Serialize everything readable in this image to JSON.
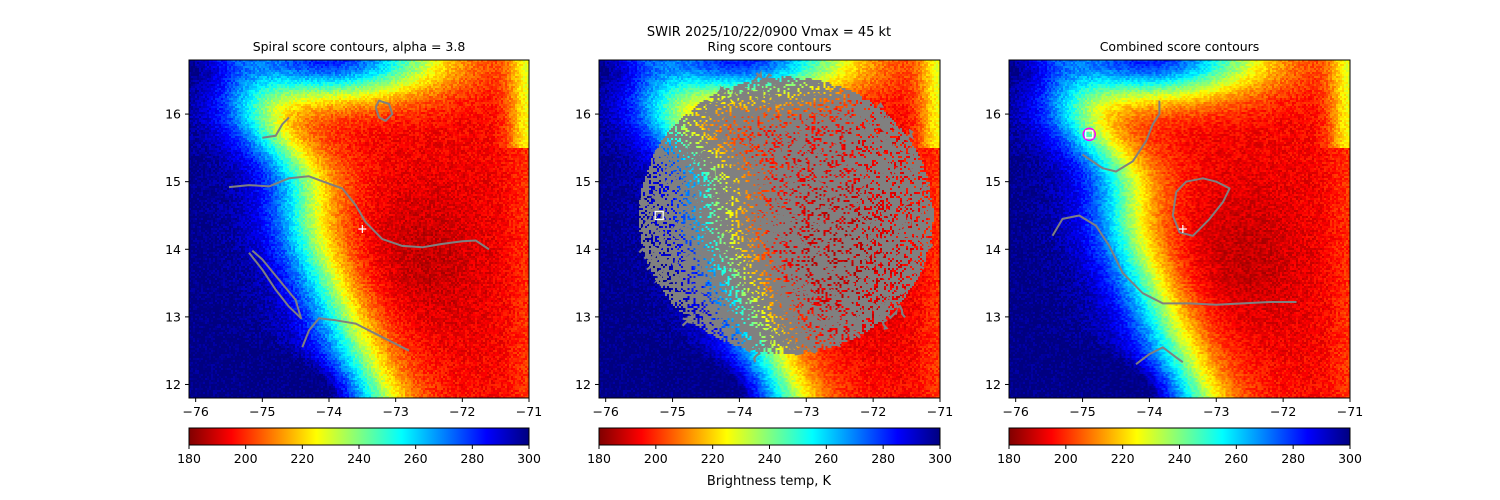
{
  "suptitle": "SWIR  2025/10/22/0900    Vmax = 45 kt",
  "colorbar_label": "Brightness temp, K",
  "colormap": [
    "#800000",
    "#ff0000",
    "#ff8000",
    "#ffff00",
    "#80ff80",
    "#00ffff",
    "#0080ff",
    "#0000ff",
    "#000080"
  ],
  "contour_color": "#808080",
  "chart_data": [
    {
      "type": "heatmap",
      "title": "Spiral score contours, alpha =  3.8",
      "xlim": [
        -76.1,
        -71.0
      ],
      "ylim": [
        11.8,
        16.8
      ],
      "xticks": [
        -76,
        -75,
        -74,
        -73,
        -72,
        -71
      ],
      "yticks": [
        12,
        13,
        14,
        15,
        16
      ],
      "xticklabels": [
        "−76",
        "−75",
        "−74",
        "−73",
        "−72",
        "−71"
      ],
      "yticklabels": [
        "12",
        "13",
        "14",
        "15",
        "16"
      ],
      "colorbar": {
        "range": [
          180,
          300
        ],
        "ticks": [
          "180",
          "200",
          "220",
          "240",
          "260",
          "280",
          "300"
        ]
      },
      "center_marker": {
        "symbol": "plus",
        "lon": -73.5,
        "lat": 14.3,
        "color": "#ffffff"
      },
      "contours": [
        [
          [
            -75.5,
            14.92
          ],
          [
            -75.2,
            14.95
          ],
          [
            -74.9,
            14.93
          ],
          [
            -74.6,
            15.05
          ],
          [
            -74.3,
            15.08
          ],
          [
            -74.0,
            14.97
          ],
          [
            -73.8,
            14.9
          ],
          [
            -73.6,
            14.65
          ],
          [
            -73.45,
            14.4
          ],
          [
            -73.2,
            14.15
          ],
          [
            -72.9,
            14.05
          ],
          [
            -72.6,
            14.03
          ],
          [
            -72.3,
            14.08
          ],
          [
            -72.0,
            14.12
          ],
          [
            -71.8,
            14.13
          ],
          [
            -71.6,
            14.0
          ]
        ],
        [
          [
            -75.2,
            13.95
          ],
          [
            -75.0,
            13.7
          ],
          [
            -74.8,
            13.4
          ],
          [
            -74.6,
            13.15
          ],
          [
            -74.42,
            12.98
          ],
          [
            -74.5,
            13.25
          ],
          [
            -74.75,
            13.55
          ],
          [
            -75.0,
            13.85
          ],
          [
            -75.15,
            13.98
          ]
        ],
        [
          [
            -74.4,
            12.55
          ],
          [
            -74.3,
            12.8
          ],
          [
            -74.15,
            12.98
          ],
          [
            -73.9,
            12.95
          ],
          [
            -73.6,
            12.9
          ],
          [
            -73.3,
            12.75
          ],
          [
            -73.0,
            12.6
          ],
          [
            -72.8,
            12.5
          ]
        ],
        [
          [
            -75.0,
            15.65
          ],
          [
            -74.8,
            15.68
          ],
          [
            -74.7,
            15.85
          ],
          [
            -74.6,
            15.95
          ]
        ],
        [
          [
            -73.3,
            16.1
          ],
          [
            -73.25,
            15.95
          ],
          [
            -73.15,
            15.9
          ],
          [
            -73.05,
            16.0
          ],
          [
            -73.1,
            16.15
          ],
          [
            -73.25,
            16.2
          ],
          [
            -73.3,
            16.1
          ]
        ]
      ]
    },
    {
      "type": "heatmap",
      "title": "Ring score contours",
      "xlim": [
        -76.1,
        -71.0
      ],
      "ylim": [
        11.8,
        16.8
      ],
      "xticks": [
        -76,
        -75,
        -74,
        -73,
        -72,
        -71
      ],
      "yticks": [
        12,
        13,
        14,
        15,
        16
      ],
      "xticklabels": [
        "−76",
        "−75",
        "−74",
        "−73",
        "−72",
        "−71"
      ],
      "yticklabels": [
        "12",
        "13",
        "14",
        "15",
        "16"
      ],
      "colorbar": {
        "range": [
          180,
          300
        ],
        "ticks": [
          "180",
          "200",
          "220",
          "240",
          "260",
          "280",
          "300"
        ]
      },
      "center_marker": {
        "symbol": "square",
        "lon": -75.2,
        "lat": 14.5,
        "color": "#ffffff"
      },
      "ring_region": {
        "center_lon": -73.3,
        "center_lat": 14.5,
        "radius_lon": 2.2,
        "radius_lat": 2.05
      },
      "contours": []
    },
    {
      "type": "heatmap",
      "title": "Combined score contours",
      "xlim": [
        -76.1,
        -71.0
      ],
      "ylim": [
        11.8,
        16.8
      ],
      "xticks": [
        -76,
        -75,
        -74,
        -73,
        -72,
        -71
      ],
      "yticks": [
        12,
        13,
        14,
        15,
        16
      ],
      "xticklabels": [
        "−76",
        "−75",
        "−74",
        "−73",
        "−72",
        "−71"
      ],
      "yticklabels": [
        "12",
        "13",
        "14",
        "15",
        "16"
      ],
      "colorbar": {
        "range": [
          180,
          300
        ],
        "ticks": [
          "180",
          "200",
          "220",
          "240",
          "260",
          "280",
          "300"
        ]
      },
      "center_marker": {
        "symbol": "plus",
        "lon": -73.5,
        "lat": 14.3,
        "color": "#ffffff"
      },
      "max_marker": {
        "symbol": "square",
        "lon": -74.9,
        "lat": 15.7,
        "color": "#ff00ff"
      },
      "contours": [
        [
          [
            -75.0,
            15.4
          ],
          [
            -74.7,
            15.2
          ],
          [
            -74.5,
            15.15
          ],
          [
            -74.25,
            15.3
          ],
          [
            -74.05,
            15.6
          ],
          [
            -73.95,
            15.85
          ],
          [
            -73.85,
            16.0
          ],
          [
            -73.85,
            16.2
          ]
        ],
        [
          [
            -75.45,
            14.2
          ],
          [
            -75.3,
            14.45
          ],
          [
            -75.05,
            14.5
          ],
          [
            -74.8,
            14.35
          ],
          [
            -74.6,
            14.05
          ],
          [
            -74.4,
            13.65
          ],
          [
            -74.1,
            13.35
          ],
          [
            -73.8,
            13.2
          ],
          [
            -73.4,
            13.2
          ],
          [
            -73.0,
            13.18
          ],
          [
            -72.6,
            13.2
          ],
          [
            -72.2,
            13.22
          ],
          [
            -71.8,
            13.22
          ]
        ],
        [
          [
            -74.2,
            12.3
          ],
          [
            -74.0,
            12.45
          ],
          [
            -73.8,
            12.55
          ],
          [
            -73.6,
            12.4
          ],
          [
            -73.5,
            12.33
          ]
        ],
        [
          [
            -73.6,
            14.85
          ],
          [
            -73.45,
            15.0
          ],
          [
            -73.2,
            15.05
          ],
          [
            -73.0,
            15.0
          ],
          [
            -72.8,
            14.9
          ],
          [
            -72.9,
            14.7
          ],
          [
            -73.1,
            14.45
          ],
          [
            -73.35,
            14.2
          ],
          [
            -73.55,
            14.25
          ],
          [
            -73.65,
            14.5
          ],
          [
            -73.6,
            14.85
          ]
        ]
      ]
    }
  ]
}
